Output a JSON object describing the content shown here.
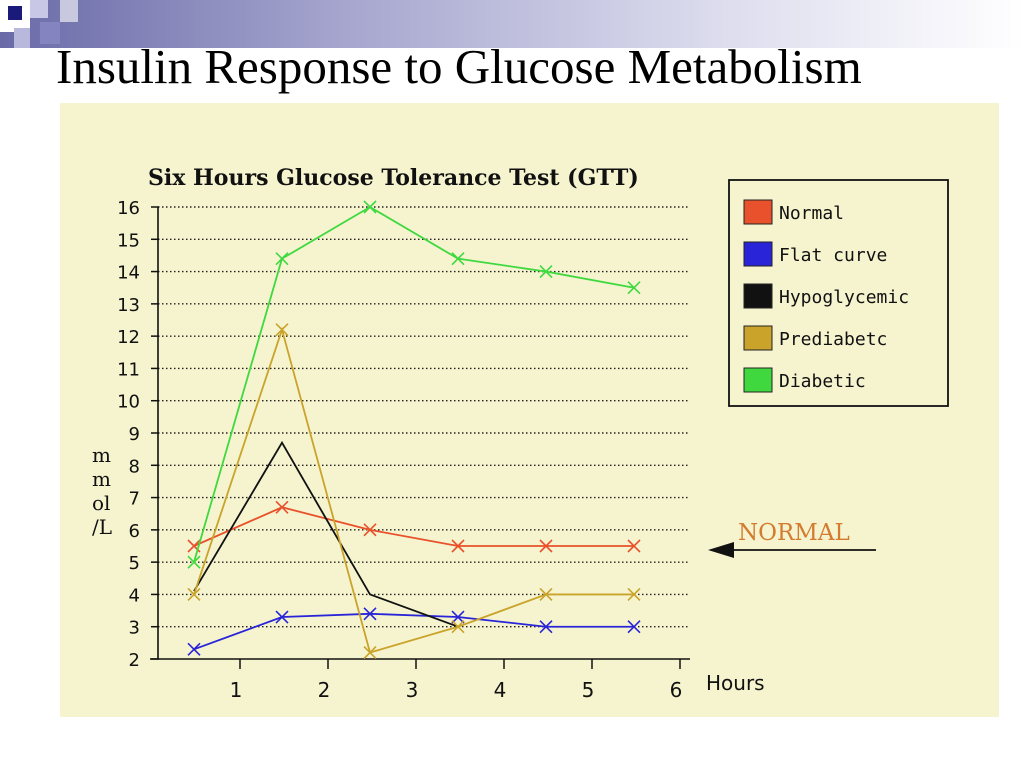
{
  "slide": {
    "title": "Insulin Response to Glucose Metabolism"
  },
  "colors": {
    "panel_bg": "#f5f4cf",
    "Normal": "#e8512b",
    "Flat curve": "#2a24d8",
    "Hypoglycemic": "#111111",
    "Prediabetc": "#caa32a",
    "Diabetic": "#3fd93f",
    "annotation": "#d47b2f"
  },
  "chart_data": {
    "type": "line",
    "title": "Six Hours Glucose Tolerance Test (GTT)",
    "xlabel": "Hours",
    "ylabel": "mmol/L",
    "xlim": [
      0,
      6.2
    ],
    "ylim": [
      2,
      16
    ],
    "x_ticks": [
      1,
      2,
      3,
      4,
      5,
      6
    ],
    "y_ticks": [
      2,
      3,
      4,
      5,
      6,
      7,
      8,
      9,
      10,
      11,
      12,
      13,
      14,
      15,
      16
    ],
    "grid": "horizontal-dotted",
    "legend_position": "top-right",
    "series": [
      {
        "name": "Normal",
        "x": [
          0.5,
          1.5,
          2.5,
          3.5,
          4.5,
          5.5
        ],
        "y": [
          5.5,
          6.7,
          6.0,
          5.5,
          5.5,
          5.5
        ],
        "markers": [
          true,
          true,
          true,
          true,
          true,
          true
        ]
      },
      {
        "name": "Flat curve",
        "x": [
          0.5,
          1.5,
          2.5,
          3.5,
          4.5,
          5.5
        ],
        "y": [
          2.3,
          3.3,
          3.4,
          3.3,
          3.0,
          3.0
        ],
        "markers": [
          true,
          true,
          true,
          true,
          true,
          true
        ]
      },
      {
        "name": "Hypoglycemic",
        "x": [
          0.5,
          1.5,
          2.5,
          3.5
        ],
        "y": [
          4.1,
          8.7,
          4.0,
          3.0
        ],
        "markers": [
          false,
          false,
          false,
          false
        ]
      },
      {
        "name": "Prediabetc",
        "x": [
          0.5,
          1.5,
          2.5,
          3.5,
          4.5,
          5.5
        ],
        "y": [
          4.0,
          12.2,
          2.2,
          3.0,
          4.0,
          4.0
        ],
        "markers": [
          true,
          true,
          true,
          true,
          true,
          true
        ]
      },
      {
        "name": "Diabetic",
        "x": [
          0.5,
          1.5,
          2.5,
          3.5,
          4.5,
          5.5
        ],
        "y": [
          5.0,
          14.4,
          16.0,
          14.4,
          14.0,
          13.5
        ],
        "markers": [
          true,
          true,
          true,
          true,
          true,
          true
        ]
      }
    ],
    "annotations": [
      {
        "text": "NORMAL",
        "y": 5.4,
        "arrow": "points-left"
      }
    ]
  }
}
